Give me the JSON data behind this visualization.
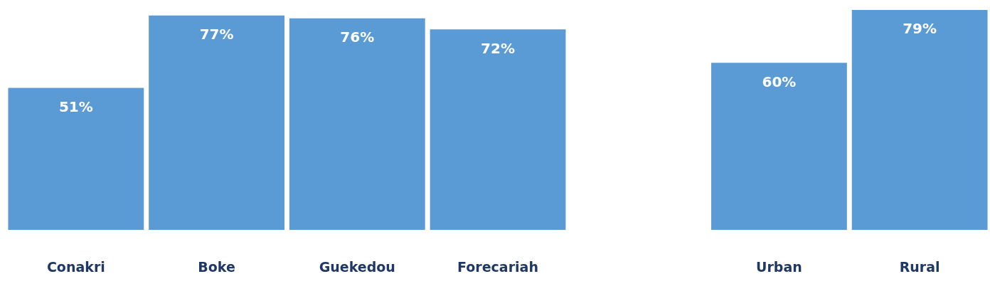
{
  "chart_data": {
    "type": "bar",
    "categories": [
      "Conakri",
      "Boke",
      "Guekedou",
      "Forecariah",
      null,
      "Urban",
      "Rural"
    ],
    "values": [
      51,
      77,
      76,
      72,
      null,
      60,
      79
    ],
    "value_labels": [
      "51%",
      "77%",
      "76%",
      "72%",
      null,
      "60%",
      "79%"
    ],
    "color": "#5b9bd5",
    "legend": false,
    "grid": false
  }
}
